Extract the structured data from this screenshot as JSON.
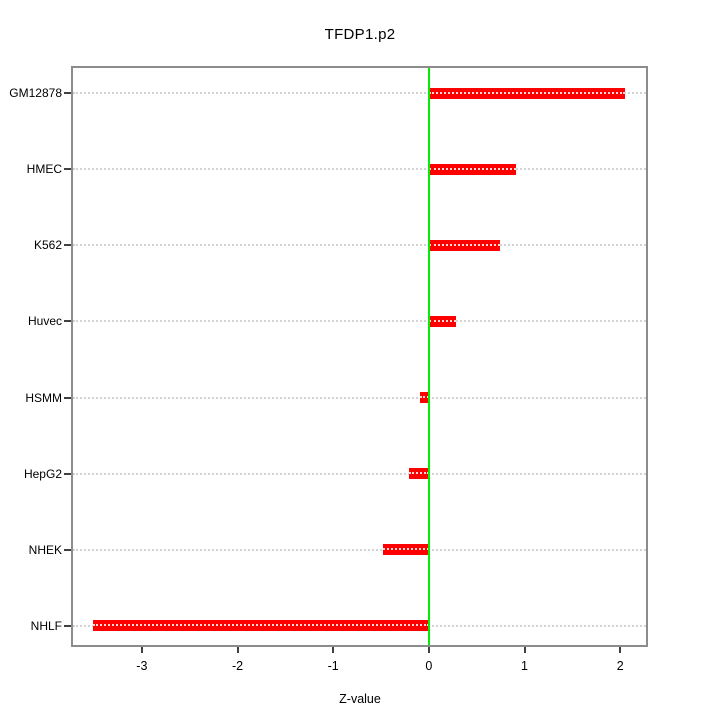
{
  "title": "TFDP1.p2",
  "chart_data": {
    "type": "bar",
    "orientation": "horizontal",
    "title": "TFDP1.p2",
    "xlabel": "Z-value",
    "ylabel": "",
    "categories": [
      "GM12878",
      "HMEC",
      "K562",
      "Huvec",
      "HSMM",
      "HepG2",
      "NHEK",
      "NHLF"
    ],
    "values": [
      2.05,
      0.91,
      0.74,
      0.28,
      -0.09,
      -0.21,
      -0.48,
      -3.51
    ],
    "xlim": [
      -3.72,
      2.27
    ],
    "xticks": [
      -3,
      -2,
      -1,
      0,
      1,
      2
    ],
    "xtick_labels": [
      "-3",
      "-2",
      "-1",
      "0",
      "1",
      "2"
    ],
    "grid": true,
    "grid_style": "dotted",
    "legend_position": "none",
    "colors": {
      "bar": "#ff0000",
      "zero_line": "#00ee00",
      "gridline": "#d3d3d3",
      "plot_border": "#8c8c8c",
      "tick": "#404040",
      "text": "#000000",
      "background": "#ffffff"
    }
  }
}
